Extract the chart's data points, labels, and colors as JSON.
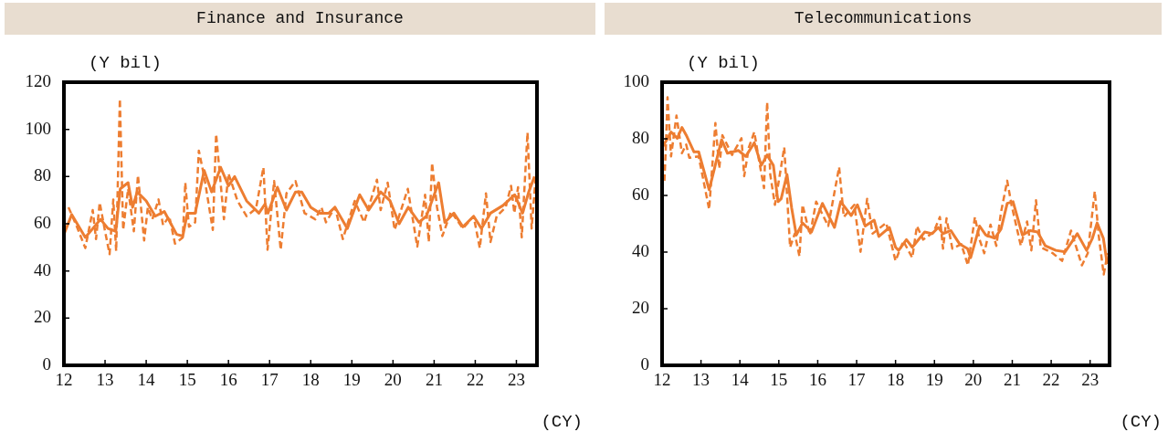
{
  "chart_data": [
    {
      "type": "line",
      "title": "Finance and Insurance",
      "ylabel": "(Y bil)",
      "xlabel": "(CY)",
      "xlim": [
        12,
        23.5
      ],
      "xticks": [
        12,
        13,
        14,
        15,
        16,
        17,
        18,
        19,
        20,
        21,
        22,
        23
      ],
      "ylim": [
        0,
        120
      ],
      "yticks": [
        0,
        20,
        40,
        60,
        80,
        100,
        120
      ],
      "grid": false,
      "legend": false,
      "marker": "none",
      "series": [
        {
          "color": "#ed7d31",
          "line_style": "solid",
          "x": [
            12.0,
            12.19,
            12.52,
            12.89,
            13.07,
            13.26,
            13.37,
            13.56,
            13.67,
            13.78,
            14.0,
            14.22,
            14.44,
            14.74,
            14.89,
            15.0,
            15.19,
            15.41,
            15.59,
            15.81,
            16.0,
            16.15,
            16.44,
            16.74,
            16.89,
            16.96,
            17.19,
            17.41,
            17.63,
            17.78,
            18.0,
            18.22,
            18.44,
            18.59,
            18.89,
            19.19,
            19.41,
            19.7,
            19.93,
            20.15,
            20.37,
            20.63,
            20.81,
            21.11,
            21.26,
            21.48,
            21.7,
            21.96,
            22.15,
            22.37,
            22.67,
            22.96,
            23.15,
            23.3,
            23.44
          ],
          "values": [
            55.5,
            63.9,
            54.2,
            61.9,
            58,
            56.8,
            74.8,
            77.4,
            67,
            73.5,
            69.7,
            63.2,
            65.2,
            55.5,
            54.8,
            64.5,
            64.5,
            82.6,
            73.5,
            83.9,
            76.1,
            80,
            69.7,
            64.5,
            68.4,
            64.5,
            75.5,
            65.8,
            73.5,
            73.5,
            67,
            64.5,
            64.5,
            67,
            58,
            72.3,
            65.8,
            73.5,
            69.7,
            60,
            67,
            60.6,
            63.2,
            77.4,
            60.6,
            64.5,
            58.7,
            63.2,
            58,
            64.5,
            67.7,
            72.3,
            64.5,
            73.5,
            80
          ]
        },
        {
          "color": "#ed7d31",
          "line_style": "dashed",
          "x": [
            12.11,
            12.3,
            12.52,
            12.7,
            12.78,
            12.87,
            13.0,
            13.11,
            13.2,
            13.27,
            13.36,
            13.44,
            13.56,
            13.7,
            13.8,
            13.95,
            14.04,
            14.15,
            14.3,
            14.41,
            14.56,
            14.7,
            14.89,
            14.95,
            15.04,
            15.19,
            15.28,
            15.41,
            15.62,
            15.7,
            15.89,
            16.0,
            16.22,
            16.44,
            16.67,
            16.85,
            16.95,
            17.11,
            17.27,
            17.41,
            17.63,
            17.85,
            18.11,
            18.26,
            18.37,
            18.59,
            18.78,
            19.07,
            19.3,
            19.61,
            19.7,
            19.87,
            20.04,
            20.36,
            20.59,
            20.78,
            20.87,
            20.95,
            21.07,
            21.2,
            21.41,
            21.7,
            21.96,
            22.11,
            22.26,
            22.37,
            22.52,
            22.74,
            22.87,
            22.95,
            23.04,
            23.13,
            23.27,
            23.37,
            23.47
          ],
          "values": [
            67,
            59.4,
            49.7,
            65.8,
            53.5,
            69,
            56.8,
            47.1,
            70.3,
            48.4,
            112.9,
            57.4,
            74.8,
            56.8,
            80.6,
            52.9,
            67,
            61.9,
            70.3,
            59.4,
            63.2,
            51.6,
            54.2,
            77.4,
            58.7,
            60.6,
            91,
            80,
            57.4,
            98,
            61.9,
            81.3,
            69.7,
            63.2,
            66.5,
            83.9,
            49,
            78.1,
            49,
            72.9,
            78.1,
            64.5,
            61.9,
            67,
            60.6,
            67,
            53.5,
            69.7,
            60.6,
            78.7,
            65.8,
            77.4,
            57.4,
            74.8,
            50.3,
            72.3,
            52.3,
            85.8,
            67,
            54.8,
            65.2,
            58,
            63.2,
            49.7,
            72.9,
            52.3,
            63.2,
            67,
            76.1,
            64.5,
            75.5,
            54.2,
            98.7,
            58,
            80
          ]
        }
      ]
    },
    {
      "type": "line",
      "title": "Telecommunications",
      "ylabel": "(Y bil)",
      "xlabel": "(CY)",
      "xlim": [
        12,
        23.5
      ],
      "xticks": [
        12,
        13,
        14,
        15,
        16,
        17,
        18,
        19,
        20,
        21,
        22,
        23
      ],
      "ylim": [
        0,
        100
      ],
      "yticks": [
        0,
        20,
        40,
        60,
        80,
        100
      ],
      "grid": false,
      "legend": false,
      "marker": "none",
      "series": [
        {
          "color": "#ed7d31",
          "line_style": "solid",
          "x": [
            12.01,
            12.23,
            12.39,
            12.51,
            12.62,
            12.82,
            12.94,
            13.21,
            13.53,
            13.68,
            13.96,
            14.15,
            14.37,
            14.55,
            14.7,
            14.86,
            14.98,
            15.06,
            15.21,
            15.33,
            15.45,
            15.61,
            15.84,
            16.12,
            16.43,
            16.59,
            16.86,
            17.02,
            17.22,
            17.45,
            17.57,
            17.84,
            18.0,
            18.08,
            18.28,
            18.43,
            18.75,
            18.94,
            19.1,
            19.22,
            19.42,
            19.65,
            19.85,
            19.93,
            20.16,
            20.32,
            20.55,
            20.71,
            20.87,
            21.02,
            21.26,
            21.46,
            21.65,
            21.85,
            22.12,
            22.36,
            22.67,
            22.91,
            23.06,
            23.18,
            23.34,
            23.44
          ],
          "values": [
            77,
            82.4,
            80.2,
            84,
            81.3,
            75.4,
            75.4,
            62,
            79.7,
            74.9,
            75.9,
            73.8,
            78.6,
            70.6,
            74.3,
            70.6,
            57.8,
            58.8,
            67.4,
            55.6,
            46,
            50.3,
            47.1,
            57.2,
            48.7,
            57.8,
            52.9,
            56.7,
            49.2,
            51.3,
            45.5,
            48.7,
            41.7,
            40.6,
            44.4,
            41.7,
            47.1,
            46.5,
            48.7,
            46.5,
            47.6,
            42.8,
            41.2,
            38,
            49.2,
            46,
            44.9,
            48.1,
            57.2,
            57.8,
            46,
            47.6,
            47.1,
            42.2,
            40.6,
            40.1,
            46.5,
            40.6,
            44.9,
            50.3,
            44.9,
            35.8
          ]
        },
        {
          "color": "#ed7d31",
          "line_style": "dashed",
          "x": [
            12.06,
            12.1,
            12.14,
            12.23,
            12.37,
            12.51,
            12.62,
            12.7,
            12.94,
            13.21,
            13.37,
            13.47,
            13.55,
            13.8,
            14.04,
            14.11,
            14.23,
            14.37,
            14.5,
            14.62,
            14.7,
            14.78,
            14.9,
            15.14,
            15.29,
            15.41,
            15.53,
            15.61,
            15.8,
            15.96,
            16.27,
            16.55,
            16.67,
            16.94,
            17.1,
            17.27,
            17.41,
            17.76,
            18.0,
            18.2,
            18.43,
            18.55,
            18.71,
            18.98,
            19.14,
            19.22,
            19.31,
            19.46,
            19.69,
            19.86,
            20.04,
            20.16,
            20.28,
            20.44,
            20.59,
            20.71,
            20.87,
            20.98,
            21.22,
            21.38,
            21.49,
            21.61,
            21.73,
            22.04,
            22.28,
            22.51,
            22.79,
            22.94,
            23.12,
            23.22,
            23.35,
            23.45
          ],
          "values": [
            65.2,
            78,
            94.7,
            73.8,
            88.2,
            74.9,
            78,
            73.3,
            73.8,
            55.1,
            85.6,
            69.5,
            81.3,
            74.3,
            80.2,
            66.8,
            77,
            82.4,
            71.7,
            62.6,
            93,
            67.4,
            56.7,
            77,
            41.7,
            46.5,
            38.5,
            56.7,
            46,
            57.8,
            49.2,
            70,
            52.4,
            56.7,
            40.1,
            58.8,
            46.5,
            50.3,
            36.9,
            43.9,
            38,
            49.2,
            44.4,
            47.1,
            52.4,
            41.2,
            51.9,
            41.2,
            42.8,
            35.3,
            52.4,
            44.4,
            39.6,
            49.7,
            42.2,
            54,
            65.2,
            56.7,
            42.2,
            50.8,
            40.6,
            58.3,
            41.7,
            39.6,
            36.9,
            47.6,
            35.3,
            39.6,
            61.5,
            46,
            32.1,
            39.6
          ]
        }
      ]
    }
  ]
}
